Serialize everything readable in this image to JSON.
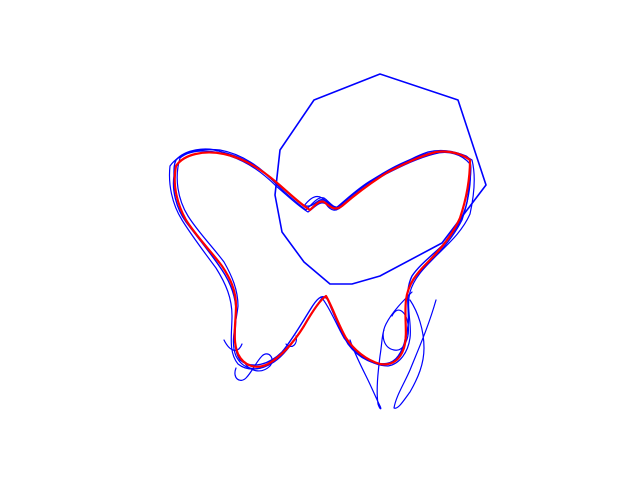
{
  "figure": {
    "description_visible_text": "",
    "colors": {
      "background": "#ffffff",
      "noisy_traces": "#0000ff",
      "reference_curve": "#ff0000",
      "polygon": "#0000ff"
    }
  }
}
